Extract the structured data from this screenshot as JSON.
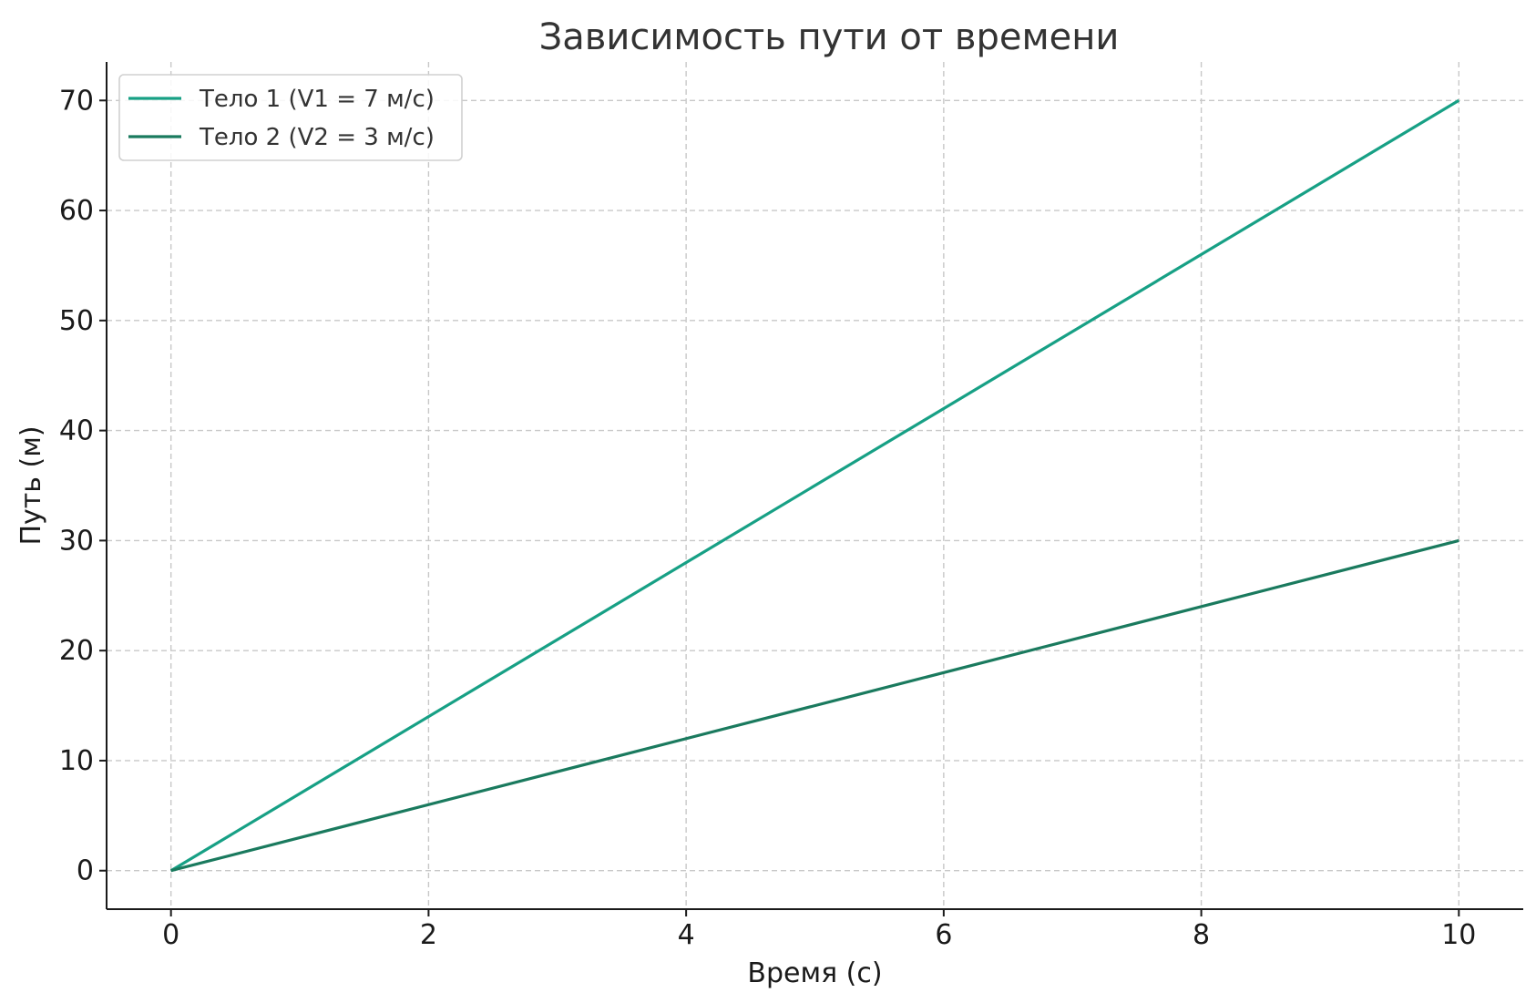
{
  "chart_data": {
    "type": "line",
    "title": "Зависимость пути от времени",
    "xlabel": "Время (с)",
    "ylabel": "Путь (м)",
    "xlim": [
      -0.5,
      10.5
    ],
    "ylim": [
      -3.5,
      73.5
    ],
    "xticks": [
      0,
      2,
      4,
      6,
      8,
      10
    ],
    "yticks": [
      0,
      10,
      20,
      30,
      40,
      50,
      60,
      70
    ],
    "grid": true,
    "legend_position": "top-left",
    "x": [
      0,
      10
    ],
    "series": [
      {
        "name": "Тело 1 (V1 = 7 м/с)",
        "values": [
          0,
          70
        ],
        "color": "#17a085"
      },
      {
        "name": "Тело 2 (V2 = 3 м/с)",
        "values": [
          0,
          30
        ],
        "color": "#1a7a5e"
      }
    ]
  }
}
